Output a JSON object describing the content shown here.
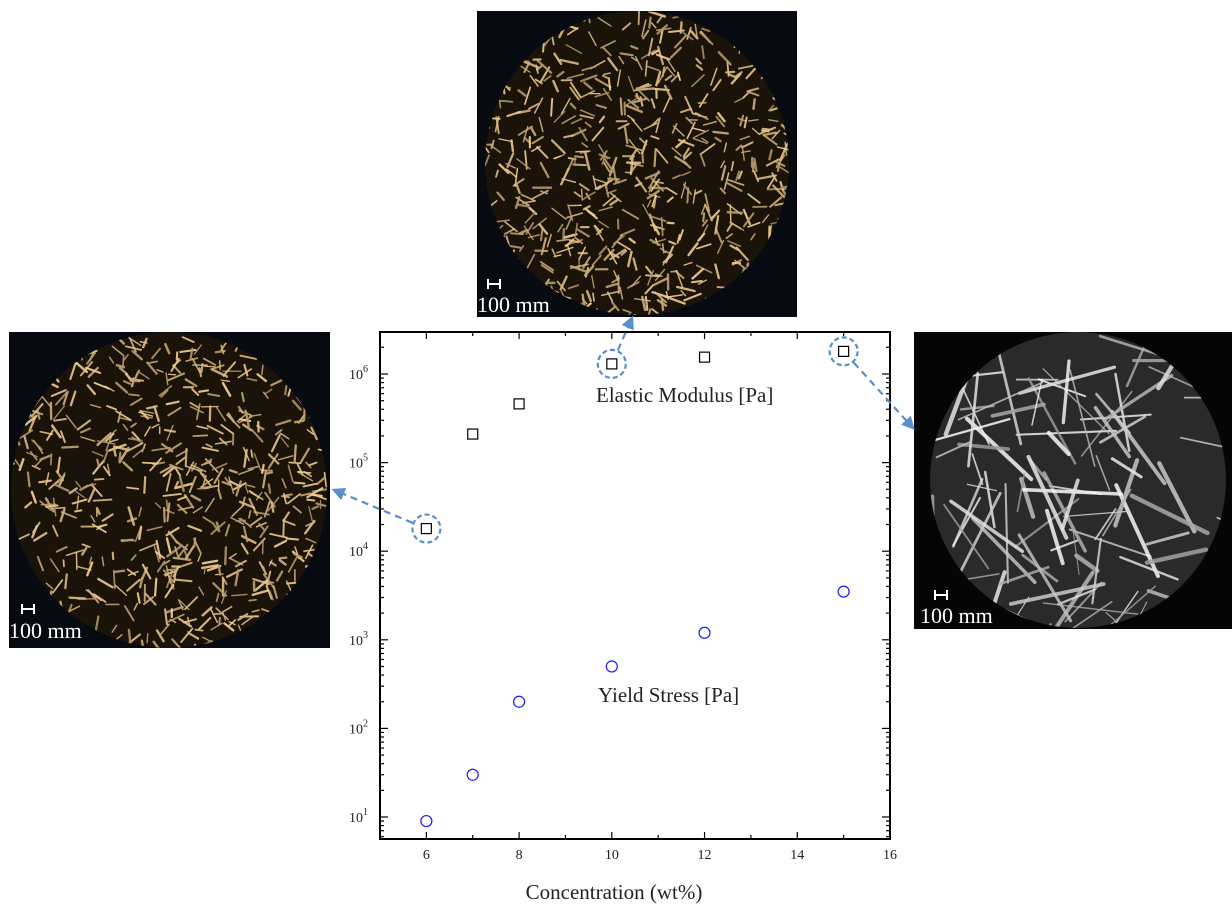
{
  "chart_data": {
    "type": "scatter",
    "xlabel": "Concentration (wt%)",
    "ylabel": "",
    "xlim": [
      5,
      16
    ],
    "ylim": [
      5,
      3000000
    ],
    "yscale": "log",
    "xticks": [
      "6",
      "8",
      "10",
      "12",
      "14",
      "16"
    ],
    "yticks": [
      {
        "base": "10",
        "exp": "1"
      },
      {
        "base": "10",
        "exp": "2"
      },
      {
        "base": "10",
        "exp": "3"
      },
      {
        "base": "10",
        "exp": "4"
      },
      {
        "base": "10",
        "exp": "5"
      },
      {
        "base": "10",
        "exp": "6"
      }
    ],
    "series": [
      {
        "name": "Elastic Modulus [Pa]",
        "marker": "square",
        "color": "#000000",
        "x": [
          6,
          7,
          8,
          10,
          12,
          15
        ],
        "y": [
          18000,
          210000,
          460000,
          1300000,
          1550000,
          1800000
        ]
      },
      {
        "name": "Yield Stress [Pa]",
        "marker": "circle",
        "color": "#1a1aff",
        "x": [
          6,
          7,
          8,
          10,
          12,
          15
        ],
        "y": [
          9,
          30,
          200,
          500,
          1200,
          3500
        ]
      }
    ],
    "highlighted_points": [
      {
        "series": "Elastic Modulus [Pa]",
        "x": 6
      },
      {
        "series": "Elastic Modulus [Pa]",
        "x": 10
      },
      {
        "series": "Elastic Modulus [Pa]",
        "x": 15
      }
    ],
    "annotation_color": "#5b8fc9",
    "grid": false
  },
  "micrographs": [
    {
      "id": "left",
      "scale_label": "100 mm",
      "style": "short-crystals"
    },
    {
      "id": "top",
      "scale_label": "100 mm",
      "style": "short-crystals"
    },
    {
      "id": "right",
      "scale_label": "100 mm",
      "style": "long-crystals"
    }
  ]
}
